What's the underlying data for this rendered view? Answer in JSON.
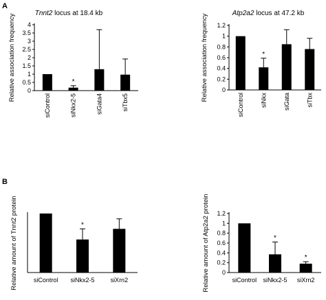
{
  "figure": {
    "panel_labels": [
      "A",
      "B"
    ]
  },
  "chart_data": [
    {
      "type": "bar",
      "panel": "A",
      "title_gene": "Tnnt2",
      "title_rest": " locus at 18.4 kb",
      "ylabel": "Relative association frequency",
      "xlabel": "",
      "categories": [
        "siControl",
        "siNkx2-5",
        "siGata4",
        "siTbx5"
      ],
      "values": [
        1.0,
        0.18,
        1.3,
        0.97
      ],
      "errors": [
        0.0,
        0.12,
        2.4,
        0.95
      ],
      "significance": [
        "",
        "*",
        "",
        ""
      ],
      "ylim": [
        0,
        4
      ],
      "yticks": [
        0,
        0.5,
        1,
        1.5,
        2,
        2.5,
        3,
        3.5,
        4
      ],
      "ytick_labels": [
        "0",
        "0.5",
        "1",
        "1.5",
        "2",
        "2.5",
        "3",
        "3.5",
        "4"
      ],
      "label_orientation": "rotated",
      "bar_color": "#000000",
      "grid": false
    },
    {
      "type": "bar",
      "panel": "A",
      "title_gene": "Atp2a2",
      "title_rest": " locus at 47.2 kb",
      "ylabel": "Relative association frequency",
      "xlabel": "",
      "categories": [
        "siControl",
        "siNkx",
        "siGata",
        "siTbx"
      ],
      "values": [
        1.0,
        0.42,
        0.85,
        0.76
      ],
      "errors": [
        0.0,
        0.17,
        0.27,
        0.2
      ],
      "significance": [
        "",
        "*",
        "",
        ""
      ],
      "ylim": [
        0,
        1.2
      ],
      "yticks": [
        0,
        0.2,
        0.4,
        0.6,
        0.8,
        1,
        1.2
      ],
      "ytick_labels": [
        "0",
        "0.2",
        "0.4",
        "0.6",
        "0.8",
        "1",
        "1.2"
      ],
      "label_orientation": "rotated",
      "bar_color": "#000000",
      "grid": false
    },
    {
      "type": "bar",
      "panel": "B",
      "title_gene": "",
      "title_rest": "",
      "ylabel": "Relative amount of Tnnt2 protein",
      "xlabel": "",
      "categories": [
        "siControl",
        "siNkx2-5",
        "siXrn2"
      ],
      "values": [
        1.0,
        0.56,
        0.74
      ],
      "errors": [
        0.0,
        0.18,
        0.17
      ],
      "significance": [
        "",
        "*",
        ""
      ],
      "ylim": [
        0,
        1
      ],
      "yticks": [],
      "ytick_labels": [],
      "label_orientation": "horizontal",
      "bar_color": "#000000",
      "grid": false
    },
    {
      "type": "bar",
      "panel": "B",
      "title_gene": "",
      "title_rest": "",
      "ylabel": "Relative amount of Atp2a2 protein",
      "xlabel": "",
      "categories": [
        "siControl",
        "siNkx2-5",
        "siXrn2"
      ],
      "values": [
        1.0,
        0.37,
        0.18
      ],
      "errors": [
        0.0,
        0.25,
        0.04
      ],
      "significance": [
        "",
        "*",
        "*"
      ],
      "ylim": [
        0,
        1.2
      ],
      "yticks": [
        0,
        0.2,
        0.4,
        0.6,
        0.8,
        1,
        1.2
      ],
      "ytick_labels": [
        "0",
        "0.2",
        "0.4",
        "0.6",
        "0.8",
        "1",
        "1.2"
      ],
      "label_orientation": "horizontal",
      "bar_color": "#000000",
      "grid": false
    }
  ]
}
